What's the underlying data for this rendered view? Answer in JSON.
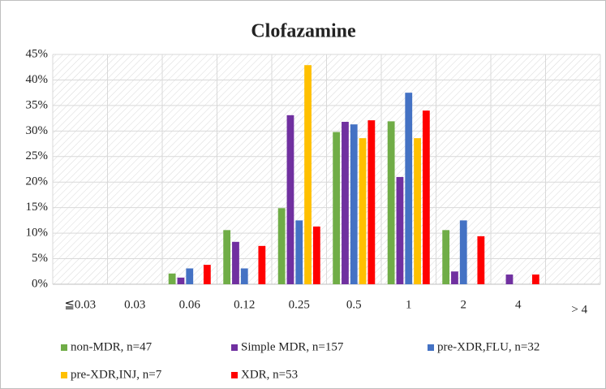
{
  "chart_data": {
    "type": "bar",
    "title": "Clofazamine",
    "categories": [
      "≦0.03",
      "0.03",
      "0.06",
      "0.12",
      "0.25",
      "0.5",
      "1",
      "2",
      "4",
      "> 4"
    ],
    "series": [
      {
        "name": "non-MDR, n=47",
        "color": "#70ad47",
        "values": [
          0,
          0,
          2.1,
          10.6,
          14.9,
          29.8,
          31.9,
          10.6,
          0,
          0
        ]
      },
      {
        "name": "Simple MDR, n=157",
        "color": "#7030a0",
        "values": [
          0,
          0,
          1.3,
          8.3,
          33.1,
          31.8,
          21.0,
          2.5,
          1.9,
          0
        ]
      },
      {
        "name": "pre-XDR,FLU, n=32",
        "color": "#4472c4",
        "values": [
          0,
          0,
          3.1,
          3.1,
          12.5,
          31.3,
          37.5,
          12.5,
          0,
          0
        ]
      },
      {
        "name": "pre-XDR,INJ, n=7",
        "color": "#ffc000",
        "values": [
          0,
          0,
          0,
          0,
          42.9,
          28.6,
          28.6,
          0,
          0,
          0
        ]
      },
      {
        "name": "XDR, n=53",
        "color": "#ff0000",
        "values": [
          0,
          0,
          3.8,
          7.5,
          11.3,
          32.1,
          34.0,
          9.4,
          1.9,
          0
        ]
      }
    ],
    "ylim": [
      0,
      45
    ],
    "yticks": [
      {
        "value": 0,
        "label": "0%"
      },
      {
        "value": 5,
        "label": "5%"
      },
      {
        "value": 10,
        "label": "10%"
      },
      {
        "value": 15,
        "label": "15%"
      },
      {
        "value": 20,
        "label": "20%"
      },
      {
        "value": 25,
        "label": "25%"
      },
      {
        "value": 30,
        "label": "30%"
      },
      {
        "value": 35,
        "label": "35%"
      },
      {
        "value": 40,
        "label": "40%"
      },
      {
        "value": 45,
        "label": "45%"
      }
    ],
    "grid": true
  }
}
